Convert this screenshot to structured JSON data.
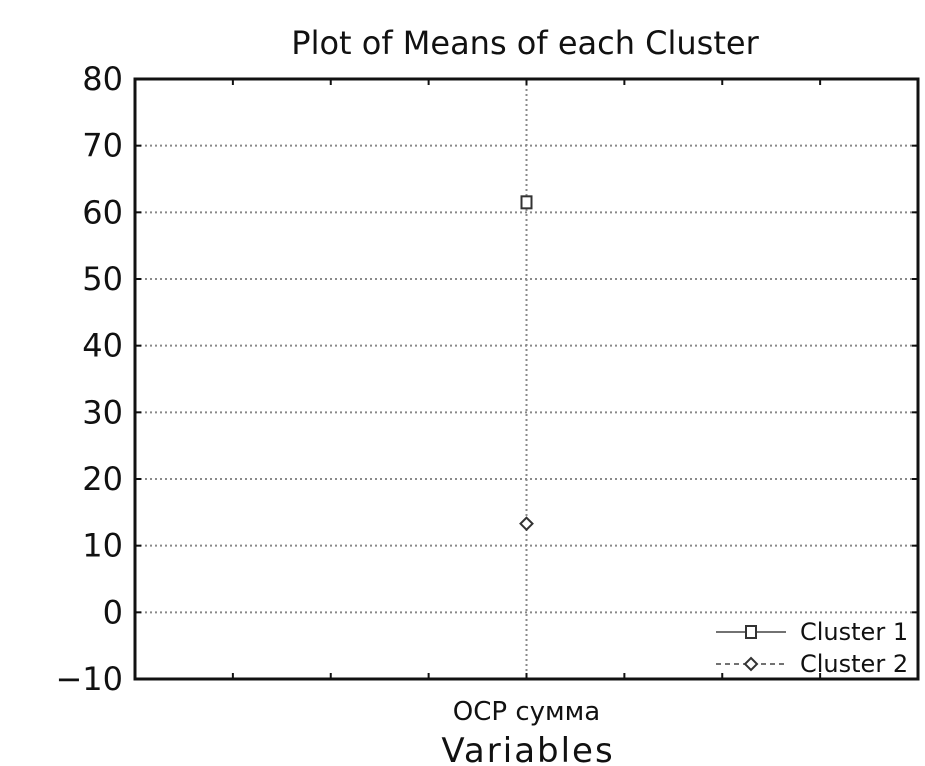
{
  "chart_data": {
    "type": "line",
    "title": "Plot of Means of each Cluster",
    "xlabel": "Variables",
    "ylabel": "",
    "categories": [
      "ОСР сумма"
    ],
    "ylim": [
      -10,
      80
    ],
    "yticks": [
      80,
      70,
      60,
      50,
      40,
      30,
      20,
      10,
      0,
      -10
    ],
    "ytick_labels": [
      "80",
      "70",
      "60",
      "50",
      "40",
      "30",
      "20",
      "10",
      "0",
      "−10"
    ],
    "grid": true,
    "legend_position": "bottom-right",
    "series": [
      {
        "name": "Cluster 1",
        "values": [
          61.5
        ],
        "marker": "square",
        "line_style": "solid",
        "color": "#333333"
      },
      {
        "name": "Cluster 2",
        "values": [
          13.3
        ],
        "marker": "diamond",
        "line_style": "dashed",
        "color": "#333333"
      }
    ]
  }
}
